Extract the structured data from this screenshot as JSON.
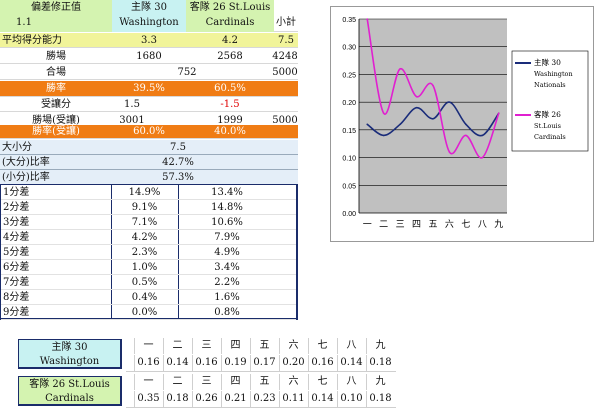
{
  "header": {
    "correction_label": "偏差修正值",
    "correction_value": "1.1",
    "home_label": "主隊 30",
    "home_team": "Washington",
    "away_label": "客隊 26 St.Louis",
    "away_team": "Cardinals",
    "subtotal_label": "小計"
  },
  "stats": {
    "avg_label": "平均得分能力",
    "avg_home": "3.3",
    "avg_away": "4.2",
    "avg_total": "7.5",
    "wins_label": "勝場",
    "wins_home": "1680",
    "wins_away": "2568",
    "wins_total": "4248",
    "tie_label": "合場",
    "tie_value": "752",
    "tie_total": "5000",
    "winrate_label": "勝率",
    "winrate_home": "39.5%",
    "winrate_away": "60.5%",
    "handicap_label": "受讓分",
    "handicap_home": "1.5",
    "handicap_away": "-1.5",
    "hwins_label": "勝場(受讓)",
    "hwins_home": "3001",
    "hwins_away": "1999",
    "hwins_total": "5000",
    "hrate_label": "勝率(受讓)",
    "hrate_home": "60.0%",
    "hrate_away": "40.0%",
    "ou_label": "大小分",
    "ou_value": "7.5",
    "over_label": "(大分)比率",
    "over_value": "42.7%",
    "under_label": "(小分)比率",
    "under_value": "57.3%"
  },
  "margins": [
    {
      "label": "1分差",
      "home": "14.9%",
      "away": "13.4%"
    },
    {
      "label": "2分差",
      "home": "9.1%",
      "away": "14.8%"
    },
    {
      "label": "3分差",
      "home": "7.1%",
      "away": "10.6%"
    },
    {
      "label": "4分差",
      "home": "4.2%",
      "away": "7.9%"
    },
    {
      "label": "5分差",
      "home": "2.3%",
      "away": "4.9%"
    },
    {
      "label": "6分差",
      "home": "1.0%",
      "away": "3.4%"
    },
    {
      "label": "7分差",
      "home": "0.5%",
      "away": "2.2%"
    },
    {
      "label": "8分差",
      "home": "0.4%",
      "away": "1.6%"
    },
    {
      "label": "9分差",
      "home": "0.0%",
      "away": "0.8%"
    }
  ],
  "innings_table": {
    "home_label": "主隊 30",
    "home_team": "Washington",
    "away_label": "客隊 26 St.Louis",
    "away_team": "Cardinals",
    "innings": [
      "一",
      "二",
      "三",
      "四",
      "五",
      "六",
      "七",
      "八",
      "九"
    ],
    "home_values": [
      "0.16",
      "0.14",
      "0.16",
      "0.19",
      "0.17",
      "0.20",
      "0.16",
      "0.14",
      "0.18"
    ],
    "away_values": [
      "0.35",
      "0.18",
      "0.26",
      "0.21",
      "0.23",
      "0.11",
      "0.14",
      "0.10",
      "0.18"
    ]
  },
  "chart_data": {
    "type": "line",
    "categories": [
      "一",
      "二",
      "三",
      "四",
      "五",
      "六",
      "七",
      "八",
      "九"
    ],
    "ylim": [
      0,
      0.35
    ],
    "yticks": [
      "0.00",
      "0.05",
      "0.10",
      "0.15",
      "0.20",
      "0.25",
      "0.30",
      "0.35"
    ],
    "grid": true,
    "legend_position": "right",
    "series": [
      {
        "name": "主隊 30 Washington Nationals",
        "legend_lines": [
          "主隊 30",
          "Washington",
          "Nationals"
        ],
        "color": "#1a2c7a",
        "values": [
          0.16,
          0.14,
          0.16,
          0.19,
          0.17,
          0.2,
          0.16,
          0.14,
          0.18
        ]
      },
      {
        "name": "客隊 26 St.Louis Cardinals",
        "legend_lines": [
          "客隊 26",
          "St.Louis",
          "Cardinals"
        ],
        "color": "#e020d0",
        "values": [
          0.35,
          0.18,
          0.26,
          0.21,
          0.23,
          0.11,
          0.14,
          0.1,
          0.18
        ]
      }
    ]
  }
}
